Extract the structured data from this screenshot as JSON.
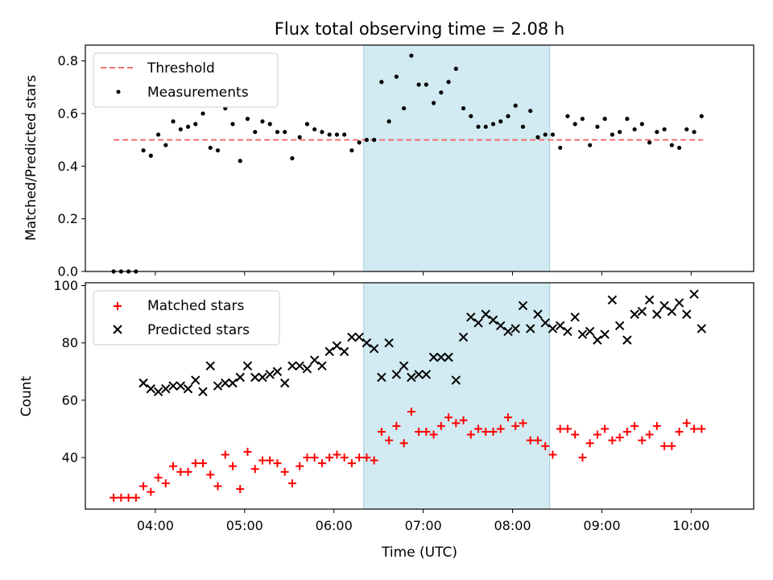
{
  "chart_data": [
    {
      "type": "scatter",
      "title": "Flux total observing time = 2.08 h",
      "ylabel": "Matched/Predicted stars",
      "xlabel": "",
      "ylim": [
        0,
        0.86
      ],
      "yticks": [
        0.0,
        0.2,
        0.4,
        0.6,
        0.8
      ],
      "ytick_labels": [
        "0.0",
        "0.2",
        "0.4",
        "0.6",
        "0.8"
      ],
      "grid": false,
      "legend_position": "top-left",
      "highlight_span": {
        "start": "06:20",
        "end": "08:25",
        "color": "#add8e6"
      },
      "threshold": {
        "name": "Threshold",
        "value": 0.5,
        "color": "#f07070",
        "from": "03:32",
        "to": "10:08"
      },
      "series": [
        {
          "name": "Measurements",
          "color": "#000000",
          "marker": "dot",
          "x": [
            "03:32",
            "03:37",
            "03:42",
            "03:47",
            "03:52",
            "03:57",
            "04:02",
            "04:07",
            "04:12",
            "04:17",
            "04:22",
            "04:27",
            "04:32",
            "04:37",
            "04:42",
            "04:47",
            "04:52",
            "04:57",
            "05:02",
            "05:07",
            "05:12",
            "05:17",
            "05:22",
            "05:27",
            "05:32",
            "05:37",
            "05:42",
            "05:47",
            "05:52",
            "05:57",
            "06:02",
            "06:07",
            "06:12",
            "06:17",
            "06:22",
            "06:27",
            "06:32",
            "06:37",
            "06:42",
            "06:47",
            "06:52",
            "06:57",
            "07:02",
            "07:07",
            "07:12",
            "07:17",
            "07:22",
            "07:27",
            "07:32",
            "07:37",
            "07:42",
            "07:47",
            "07:52",
            "07:57",
            "08:02",
            "08:07",
            "08:12",
            "08:17",
            "08:22",
            "08:27",
            "08:32",
            "08:37",
            "08:42",
            "08:47",
            "08:52",
            "08:57",
            "09:02",
            "09:07",
            "09:12",
            "09:17",
            "09:22",
            "09:27",
            "09:32",
            "09:37",
            "09:42",
            "09:47",
            "09:52",
            "09:57",
            "10:02",
            "10:07"
          ],
          "y": [
            0.0,
            0.0,
            0.0,
            0.0,
            0.46,
            0.44,
            0.52,
            0.48,
            0.57,
            0.54,
            0.55,
            0.56,
            0.6,
            0.47,
            0.46,
            0.62,
            0.56,
            0.42,
            0.58,
            0.53,
            0.57,
            0.56,
            0.53,
            0.53,
            0.43,
            0.51,
            0.56,
            0.54,
            0.53,
            0.52,
            0.52,
            0.52,
            0.46,
            0.49,
            0.5,
            0.5,
            0.72,
            0.57,
            0.74,
            0.62,
            0.82,
            0.71,
            0.71,
            0.64,
            0.68,
            0.72,
            0.77,
            0.62,
            0.59,
            0.55,
            0.55,
            0.56,
            0.57,
            0.59,
            0.63,
            0.55,
            0.61,
            0.51,
            0.52,
            0.52,
            0.47,
            0.59,
            0.56,
            0.58,
            0.48,
            0.55,
            0.58,
            0.52,
            0.53,
            0.58,
            0.54,
            0.56,
            0.49,
            0.53,
            0.54,
            0.48,
            0.47,
            0.54,
            0.53,
            0.59
          ]
        }
      ]
    },
    {
      "type": "scatter",
      "title": "",
      "ylabel": "Count",
      "xlabel": "Time (UTC)",
      "ylim": [
        22,
        101
      ],
      "yticks": [
        40,
        60,
        80,
        100
      ],
      "ytick_labels": [
        "40",
        "60",
        "80",
        "100"
      ],
      "xlim": [
        "03:13",
        "10:42"
      ],
      "xticks": [
        "04:00",
        "05:00",
        "06:00",
        "07:00",
        "08:00",
        "09:00",
        "10:00"
      ],
      "grid": false,
      "legend_position": "top-left",
      "highlight_span": {
        "start": "06:20",
        "end": "08:25",
        "color": "#add8e6"
      },
      "series": [
        {
          "name": "Matched stars",
          "color": "#ff0000",
          "marker": "plus",
          "x": [
            "03:32",
            "03:37",
            "03:42",
            "03:47",
            "03:52",
            "03:57",
            "04:02",
            "04:07",
            "04:12",
            "04:17",
            "04:22",
            "04:27",
            "04:32",
            "04:37",
            "04:42",
            "04:47",
            "04:52",
            "04:57",
            "05:02",
            "05:07",
            "05:12",
            "05:17",
            "05:22",
            "05:27",
            "05:32",
            "05:37",
            "05:42",
            "05:47",
            "05:52",
            "05:57",
            "06:02",
            "06:07",
            "06:12",
            "06:17",
            "06:22",
            "06:27",
            "06:32",
            "06:37",
            "06:42",
            "06:47",
            "06:52",
            "06:57",
            "07:02",
            "07:07",
            "07:12",
            "07:17",
            "07:22",
            "07:27",
            "07:32",
            "07:37",
            "07:42",
            "07:47",
            "07:52",
            "07:57",
            "08:02",
            "08:07",
            "08:12",
            "08:17",
            "08:22",
            "08:27",
            "08:32",
            "08:37",
            "08:42",
            "08:47",
            "08:52",
            "08:57",
            "09:02",
            "09:07",
            "09:12",
            "09:17",
            "09:22",
            "09:27",
            "09:32",
            "09:37",
            "09:42",
            "09:47",
            "09:52",
            "09:57",
            "10:02",
            "10:07"
          ],
          "y": [
            26,
            26,
            26,
            26,
            30,
            28,
            33,
            31,
            37,
            35,
            35,
            38,
            38,
            34,
            30,
            41,
            37,
            29,
            42,
            36,
            39,
            39,
            38,
            35,
            31,
            37,
            40,
            40,
            38,
            40,
            41,
            40,
            38,
            40,
            40,
            39,
            49,
            46,
            51,
            45,
            56,
            49,
            49,
            48,
            51,
            54,
            52,
            53,
            48,
            50,
            49,
            49,
            50,
            54,
            51,
            52,
            46,
            46,
            44,
            41,
            50,
            50,
            48,
            40,
            45,
            48,
            50,
            46,
            47,
            49,
            51,
            46,
            48,
            51,
            44,
            44,
            49,
            52,
            50,
            50
          ]
        },
        {
          "name": "Predicted stars",
          "color": "#000000",
          "marker": "x",
          "x": [
            "03:52",
            "03:57",
            "04:02",
            "04:07",
            "04:12",
            "04:17",
            "04:22",
            "04:27",
            "04:32",
            "04:37",
            "04:42",
            "04:47",
            "04:52",
            "04:57",
            "05:02",
            "05:07",
            "05:12",
            "05:17",
            "05:22",
            "05:27",
            "05:32",
            "05:37",
            "05:42",
            "05:47",
            "05:52",
            "05:57",
            "06:02",
            "06:07",
            "06:12",
            "06:17",
            "06:22",
            "06:27",
            "06:32",
            "06:37",
            "06:42",
            "06:47",
            "06:52",
            "06:57",
            "07:02",
            "07:07",
            "07:12",
            "07:17",
            "07:22",
            "07:27",
            "07:32",
            "07:37",
            "07:42",
            "07:47",
            "07:52",
            "07:57",
            "08:02",
            "08:07",
            "08:12",
            "08:17",
            "08:22",
            "08:27",
            "08:32",
            "08:37",
            "08:42",
            "08:47",
            "08:52",
            "08:57",
            "09:02",
            "09:07",
            "09:12",
            "09:17",
            "09:22",
            "09:27",
            "09:32",
            "09:37",
            "09:42",
            "09:47",
            "09:52",
            "09:57",
            "10:02",
            "10:07"
          ],
          "y": [
            66,
            64,
            63,
            64,
            65,
            65,
            64,
            67,
            63,
            72,
            65,
            66,
            66,
            68,
            72,
            68,
            68,
            69,
            70,
            66,
            72,
            72,
            71,
            74,
            72,
            77,
            79,
            77,
            82,
            82,
            80,
            78,
            68,
            80,
            69,
            72,
            68,
            69,
            69,
            75,
            75,
            75,
            67,
            82,
            89,
            87,
            90,
            88,
            86,
            84,
            85,
            93,
            85,
            90,
            87,
            85,
            86,
            84,
            89,
            83,
            84,
            81,
            83,
            95,
            86,
            81,
            90,
            91,
            95,
            90,
            93,
            91,
            94,
            90,
            97,
            85
          ]
        }
      ]
    }
  ]
}
